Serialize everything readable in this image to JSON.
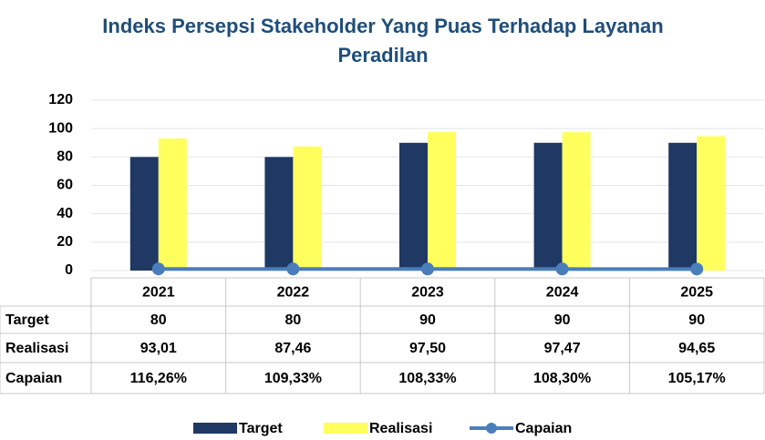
{
  "chart_data": {
    "type": "bar",
    "title": [
      "Indeks Persepsi Stakeholder Yang Puas Terhadap Layanan",
      "Peradilan"
    ],
    "categories": [
      "2021",
      "2022",
      "2023",
      "2024",
      "2025"
    ],
    "series": [
      {
        "name": "Target",
        "type": "bar",
        "color": "#1f3864",
        "values": [
          80,
          80,
          90,
          90,
          90
        ]
      },
      {
        "name": "Realisasi",
        "type": "bar",
        "color": "#ffff5e",
        "values": [
          93.01,
          87.46,
          97.5,
          97.47,
          94.65
        ],
        "value_labels": [
          "93,01",
          "87,46",
          "97,50",
          "97,47",
          "94,65"
        ]
      },
      {
        "name": "Capaian",
        "type": "line",
        "color": "#4a7ebb",
        "values": [
          1.1626,
          1.0933,
          1.0833,
          1.083,
          1.0517
        ],
        "value_labels": [
          "116,26%",
          "109,33%",
          "108,33%",
          "108,30%",
          "105,17%"
        ]
      }
    ],
    "ylim": [
      0,
      120
    ],
    "yticks": [
      0,
      20,
      40,
      60,
      80,
      100,
      120
    ],
    "grid": true,
    "legend": "bottom"
  }
}
